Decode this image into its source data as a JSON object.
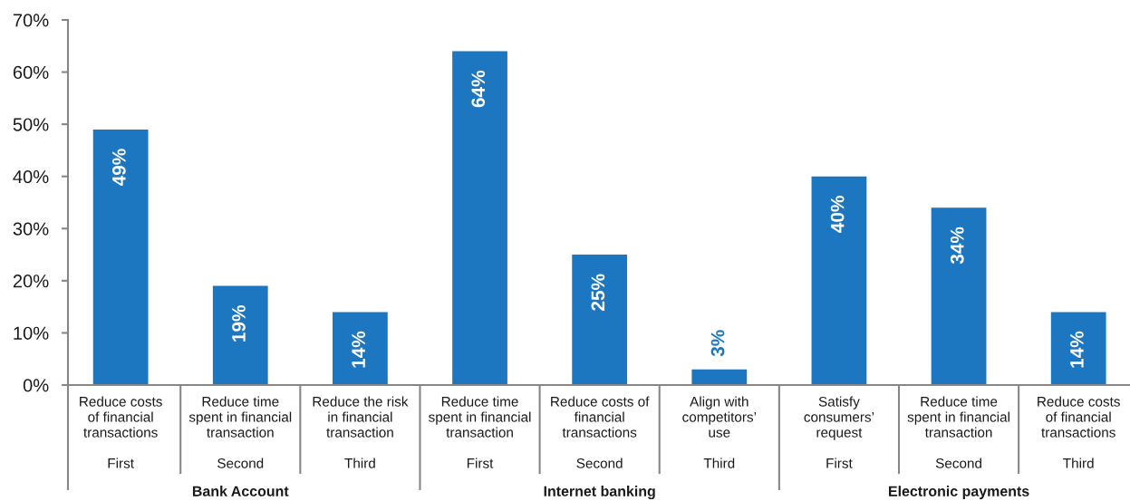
{
  "chart_data": {
    "type": "bar",
    "categories": [
      "Reduce costs\nof financial\ntransactions\n\nFirst",
      "Reduce time\nspent in financial\ntransaction\n\nSecond",
      "Reduce the risk\nin financial\ntransaction\n\nThird",
      "Reduce time\nspent in financial\ntransaction\n\nFirst",
      "Reduce costs of\nfinancial\ntransactions\n\nSecond",
      "Align with\ncompetitors’\nuse\n\nThird",
      "Satisfy\nconsumers’\nrequest\n\nFirst",
      "Reduce time\nspent in financial\ntransaction\n\nSecond",
      "Reduce costs\nof financial\ntransactions\n\nThird"
    ],
    "values": [
      49,
      19,
      14,
      64,
      25,
      3,
      40,
      34,
      14
    ],
    "color": "#1c77c0",
    "value_labels": [
      "49%",
      "19%",
      "14%",
      "64%",
      "25%",
      "3%",
      "40%",
      "34%",
      "14%"
    ],
    "ylim": [
      0,
      70
    ],
    "yticks": [
      {
        "value": 0,
        "label": "0%"
      },
      {
        "value": 10,
        "label": "10%"
      },
      {
        "value": 20,
        "label": "20%"
      },
      {
        "value": 30,
        "label": "30%"
      },
      {
        "value": 40,
        "label": "40%"
      },
      {
        "value": 50,
        "label": "50%"
      },
      {
        "value": 60,
        "label": "60%"
      },
      {
        "value": 70,
        "label": "70%"
      }
    ],
    "annotations": [
      "Bank Account",
      "Internet banking",
      "Electronic payments"
    ]
  }
}
